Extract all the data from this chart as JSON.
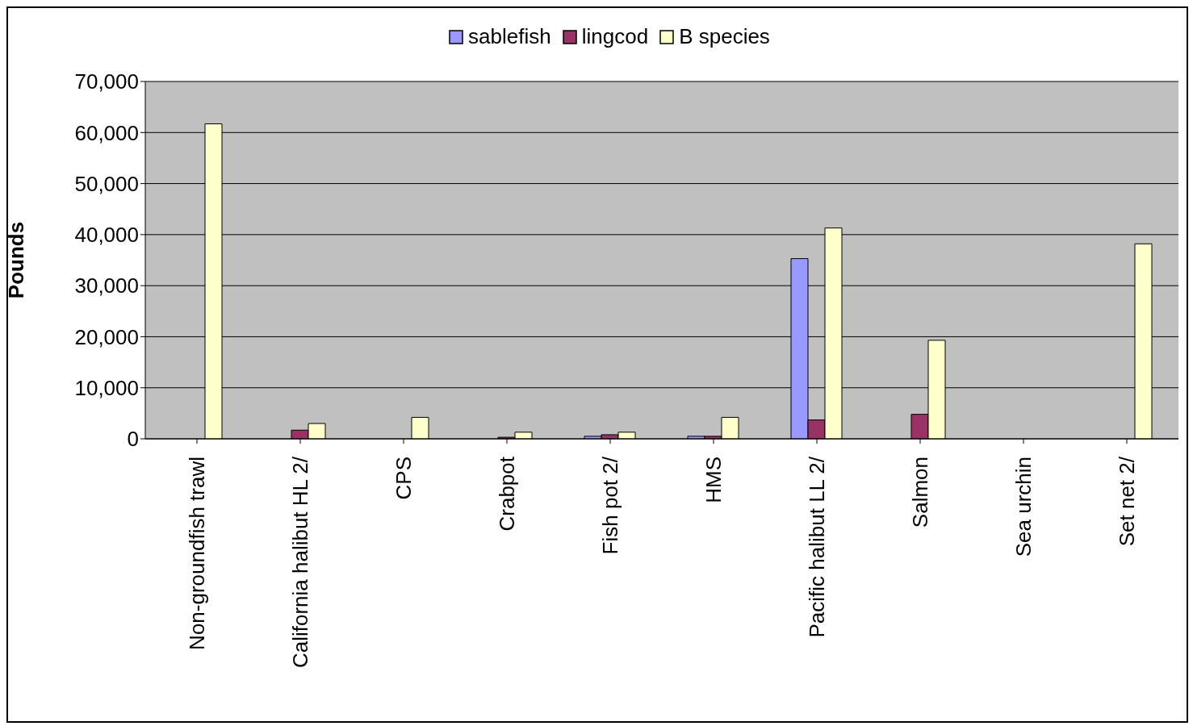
{
  "chart_data": {
    "type": "bar",
    "ylabel": "Pounds",
    "categories": [
      "Non-groundfish trawl",
      "California halibut HL 2/",
      "CPS",
      "Crabpot",
      "Fish pot 2/",
      "HMS",
      "Pacific halibut LL 2/",
      "Salmon",
      "Sea urchin",
      "Set net 2/"
    ],
    "series": [
      {
        "name": "sablefish",
        "color": "#9999ff",
        "values": [
          null,
          null,
          null,
          null,
          500,
          500,
          35300,
          null,
          null,
          null
        ]
      },
      {
        "name": "lingcod",
        "color": "#993366",
        "values": [
          null,
          1700,
          null,
          300,
          800,
          500,
          3700,
          4800,
          null,
          null
        ]
      },
      {
        "name": "B species",
        "color": "#ffffcc",
        "values": [
          61700,
          3000,
          4200,
          1300,
          1300,
          4200,
          41300,
          19300,
          null,
          38200
        ]
      }
    ],
    "ylim": [
      0,
      70000
    ],
    "yticks": [
      0,
      {
        "value": 10000,
        "label": "10,000"
      },
      {
        "value": 20000,
        "label": "20,000"
      },
      {
        "value": 30000,
        "label": "30,000"
      },
      {
        "value": 40000,
        "label": "40,000"
      },
      {
        "value": 50000,
        "label": "50,000"
      },
      {
        "value": 60000,
        "label": "60,000"
      },
      {
        "value": 70000,
        "label": "70,000"
      }
    ],
    "grid": "y",
    "legend": "top"
  }
}
